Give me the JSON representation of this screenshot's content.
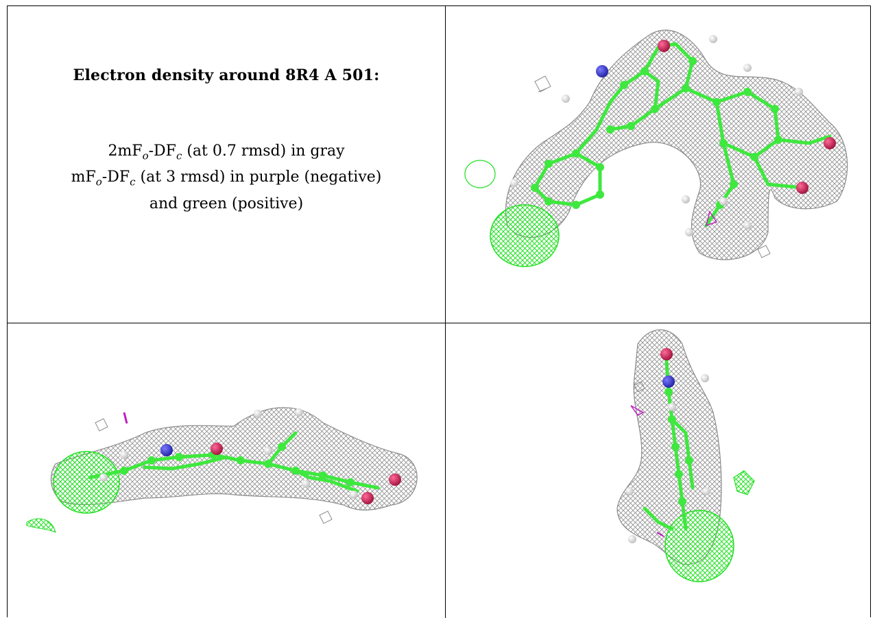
{
  "caption": {
    "title": "Electron density around 8R4 A 501:",
    "line1_pre": "2mF",
    "line1_sub1": "o",
    "line1_mid": "-DF",
    "line1_sub2": "c",
    "line1_post": " (at 0.7 rmsd) in gray",
    "line2_pre": "mF",
    "line2_sub1": "o",
    "line2_mid": "-DF",
    "line2_sub2": "c",
    "line2_post": " (at 3 rmsd) in purple (negative)",
    "line3": "and green (positive)"
  },
  "colors": {
    "mesh_gray": "#8c8c8c",
    "positive_green": "#22e022",
    "negative_purple": "#c020c0",
    "carbon_green": "#3ee83e",
    "nitrogen_blue": "#3a3ad0",
    "oxygen_red": "#d81e5a",
    "hydrogen_white": "#e8e8e8"
  }
}
